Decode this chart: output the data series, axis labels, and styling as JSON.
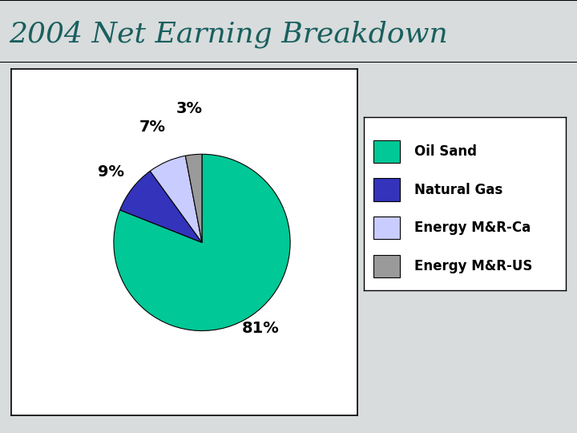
{
  "title": "2004 Net Earning Breakdown",
  "title_color": "#1a5f5f",
  "title_fontsize": 26,
  "title_bg_color": "#d4d8d8",
  "labels": [
    "Oil Sand",
    "Natural Gas",
    "Energy M&R-Ca",
    "Energy M&R-US"
  ],
  "values": [
    81,
    9,
    7,
    3
  ],
  "colors": [
    "#00c896",
    "#3333bb",
    "#c8ccff",
    "#9a9a9a"
  ],
  "pct_labels": [
    "81%",
    "9%",
    "7%",
    "3%"
  ],
  "background_color": "#d8dcdc",
  "plot_bg_color": "#ffffff",
  "legend_fontsize": 12
}
